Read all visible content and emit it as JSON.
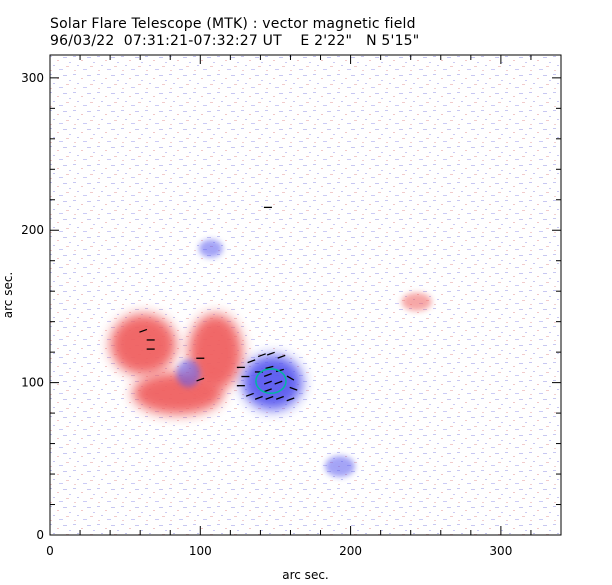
{
  "chart_data": {
    "type": "heatmap",
    "title": "Solar Flare Telescope (MTK) : vector magnetic field",
    "subtitle": "96/03/22  07:31:21-07:32:27 UT    E 2'22\"   N 5'15\"",
    "xlabel": "arc sec.",
    "ylabel": "arc sec.",
    "xlim": [
      0,
      340
    ],
    "ylim": [
      0,
      315
    ],
    "xticks": [
      0,
      100,
      200,
      300
    ],
    "yticks": [
      0,
      100,
      200,
      300
    ],
    "colors": {
      "positive": "#f06060",
      "negative": "#5a5af0",
      "contour": "#00b8a0",
      "vector": "#000000"
    },
    "regions": [
      {
        "name": "positive-lobe-west",
        "polarity": "positive",
        "x": 62,
        "y": 125,
        "rx": 22,
        "ry": 20
      },
      {
        "name": "positive-lobe-south",
        "polarity": "positive",
        "x": 85,
        "y": 93,
        "rx": 30,
        "ry": 14
      },
      {
        "name": "positive-lobe-east",
        "polarity": "positive",
        "x": 110,
        "y": 120,
        "rx": 18,
        "ry": 25
      },
      {
        "name": "negative-core-small",
        "polarity": "negative",
        "x": 92,
        "y": 106,
        "rx": 8,
        "ry": 9
      },
      {
        "name": "negative-spot-main",
        "polarity": "negative",
        "x": 148,
        "y": 100,
        "rx": 20,
        "ry": 18
      },
      {
        "name": "negative-patch-south",
        "polarity": "negative",
        "x": 193,
        "y": 45,
        "rx": 10,
        "ry": 7
      },
      {
        "name": "negative-patch-north",
        "polarity": "negative",
        "x": 107,
        "y": 188,
        "rx": 8,
        "ry": 6
      },
      {
        "name": "positive-patch-east",
        "polarity": "positive",
        "x": 244,
        "y": 153,
        "rx": 10,
        "ry": 6
      }
    ],
    "vectors": [
      {
        "x": 62,
        "y": 134,
        "angle": -20
      },
      {
        "x": 67,
        "y": 128,
        "angle": 0
      },
      {
        "x": 67,
        "y": 122,
        "angle": 0
      },
      {
        "x": 100,
        "y": 116,
        "angle": 0
      },
      {
        "x": 100,
        "y": 102,
        "angle": -20
      },
      {
        "x": 127,
        "y": 110,
        "angle": 0
      },
      {
        "x": 130,
        "y": 104,
        "angle": 0
      },
      {
        "x": 127,
        "y": 98,
        "angle": 0
      },
      {
        "x": 134,
        "y": 114,
        "angle": -20
      },
      {
        "x": 141,
        "y": 118,
        "angle": -20
      },
      {
        "x": 147,
        "y": 119,
        "angle": -20
      },
      {
        "x": 154,
        "y": 117,
        "angle": -20
      },
      {
        "x": 139,
        "y": 107,
        "angle": 0
      },
      {
        "x": 146,
        "y": 110,
        "angle": -15
      },
      {
        "x": 153,
        "y": 108,
        "angle": -15
      },
      {
        "x": 160,
        "y": 103,
        "angle": 30
      },
      {
        "x": 162,
        "y": 96,
        "angle": 20
      },
      {
        "x": 133,
        "y": 92,
        "angle": -20
      },
      {
        "x": 139,
        "y": 90,
        "angle": -20
      },
      {
        "x": 146,
        "y": 90,
        "angle": -20
      },
      {
        "x": 153,
        "y": 90,
        "angle": -20
      },
      {
        "x": 160,
        "y": 89,
        "angle": -20
      },
      {
        "x": 145,
        "y": 100,
        "angle": -20
      },
      {
        "x": 152,
        "y": 100,
        "angle": -20
      },
      {
        "x": 145,
        "y": 95,
        "angle": -20
      },
      {
        "x": 145,
        "y": 105,
        "angle": -20
      },
      {
        "x": 145,
        "y": 215,
        "angle": 0
      }
    ],
    "contour": {
      "x": 147,
      "y": 101,
      "rx": 10,
      "ry": 8
    }
  }
}
